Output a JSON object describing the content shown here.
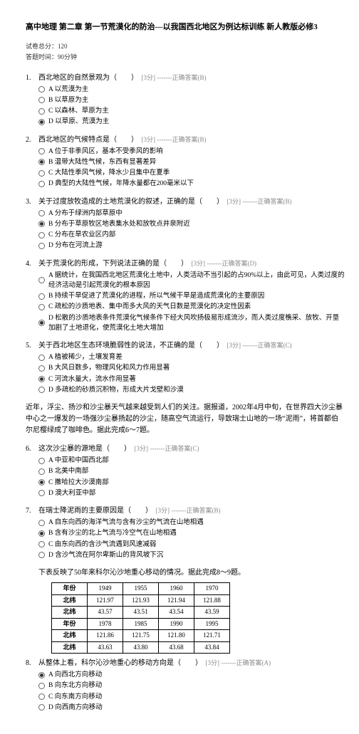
{
  "title": "高中地理 第二章 第一节荒漠化的防治—以我国西北地区为例达标训练 新人教版必修3",
  "meta": {
    "total": "试卷总分：120",
    "time": "答题时间：90分钟"
  },
  "q1": {
    "num": "1.",
    "stem": "西北地区的自然景观为（　　）",
    "score": "[3分]",
    "ans": "-------正确答案(B)",
    "o": {
      "a": "A 以荒漠为主",
      "b": "B 以草原为主",
      "c": "C 以森林、草原为主",
      "d": "D 以草原、荒漠为主"
    },
    "sel": "d"
  },
  "q2": {
    "num": "2.",
    "stem": "西北地区的气候特点是（　　）",
    "score": "[3分]",
    "ans": "-------正确答案(B)",
    "o": {
      "a": "A 位于非季风区，基本不受季风的影响",
      "b": "B 温带大陆性气候，东西有显著差异",
      "c": "C 大陆性季风气候，降水少且集中在夏季",
      "d": "D 典型的大陆性气候，年降水量都在200毫米以下"
    },
    "sel": "b"
  },
  "q3": {
    "num": "3.",
    "stem": "关于过度放牧造成的土地荒漠化的叙述，正确的是（　　）",
    "score": "[3分]",
    "ans": "-------正确答案(B)",
    "o": {
      "a": "A 分布于绿洲内部草原中",
      "b": "B 分布于草原牧区地表集水处和放牧点井泉附近",
      "c": "C 分布在旱农业区内部",
      "d": "D 分布在河流上游"
    },
    "sel": "b"
  },
  "q4": {
    "num": "4.",
    "stem": "关于荒漠化的形成，下列说法正确的是（　　）",
    "score": "[3分]",
    "ans": "-------正确答案(D)",
    "o": {
      "a": "A 据统计，在我国西北地区荒漠化土地中，人类活动不当引起的占90%以上，由此可见，人类过度的经济活动是引起荒漠化的根本原因",
      "b": "B 持续干旱促进了荒漠化的进程，所以气候干旱是造成荒漠化的主要原因",
      "c": "C 疏松的沙质地表、集中而多大风的天气日数是荒漠化的决定性因素",
      "d": "D 松散的沙质地表条件荒漠化气候条件下经大风吹扬极易形成流沙，而人类过度樵采、放牧、开垦加剧了土地退化，使荒漠化土地大增加"
    },
    "sel": "d"
  },
  "q5": {
    "num": "5.",
    "stem": "关于西北地区生态环境脆弱性的说法，不正确的是（　　）",
    "score": "[3分]",
    "ans": "-------正确答案(C)",
    "o": {
      "a": "A 植被稀少，土壤发育差",
      "b": "B 大风日数多，物理风化和风力作用显著",
      "c": "C 河流水量大，流水作用显著",
      "d": "D 多疏松的砂质沉积物，形成大片戈壁和沙漠"
    },
    "sel": "c"
  },
  "passage1": "近年，浮尘、扬沙和沙尘暴天气越来越受到人们的关注。据报道，2002年4月中旬，在世界四大沙尘暴中心之一爆发的一场强沙尘暴扬起的沙尘，随高空气流运行，导致瑞士山地的一场“泥雨”，将首都伯尔尼樱绿成了咖啡色。据此完成6～7题。",
  "q6": {
    "num": "6.",
    "stem": "这次沙尘暴的源地是（　　）",
    "score": "[3分]",
    "ans": "-------正确答案(C)",
    "o": {
      "a": "A 中亚和中国西北部",
      "b": "B 北美中南部",
      "c": "C 撒哈拉大沙漠南部",
      "d": "D 澳大利亚中部"
    },
    "sel": "c"
  },
  "q7": {
    "num": "7.",
    "stem": "在瑞士降泥雨的主要原因是（　　）",
    "score": "[3分]",
    "ans": "-------正确答案(B)",
    "o": {
      "a": "A 自东向西的海洋气流与含有沙尘的气流在山地相遇",
      "b": "B 含有沙尘的北上气流与冷空气在山地相遇",
      "c": "C 由东向西的含沙气流遇到风速减弱",
      "d": "D 含沙气流在阿尔卑斯山的背风坡下沉"
    },
    "sel": "b"
  },
  "tableIntro": "下表反映了50年来科尔沁沙地重心移动的情况。据此完成8～9题。",
  "table": {
    "r1": [
      "年份",
      "1949",
      "1955",
      "1960",
      "1970"
    ],
    "r2": [
      "北纬",
      "121.97",
      "121.93",
      "121.94",
      "121.88"
    ],
    "r3": [
      "北纬",
      "43.57",
      "43.51",
      "43.54",
      "43.59"
    ],
    "r4": [
      "年份",
      "1978",
      "1985",
      "1990",
      "1995"
    ],
    "r5": [
      "北纬",
      "121.86",
      "121.75",
      "121.80",
      "121.71"
    ],
    "r6": [
      "北纬",
      "43.63",
      "43.80",
      "43.68",
      "43.84"
    ]
  },
  "q8": {
    "num": "8.",
    "stem": "从整体上看，科尔沁沙地重心的移动方向是（　　）",
    "score": "[3分]",
    "ans": "-------正确答案(A)",
    "o": {
      "a": "A 向西北方向移动",
      "b": "B 向东北方向移动",
      "c": "C 向东南方向移动",
      "d": "D 向西南方向移动"
    },
    "sel": "a"
  }
}
